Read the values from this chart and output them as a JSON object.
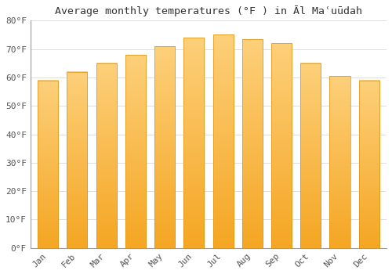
{
  "title": "Average monthly temperatures (°F ) in Àl Maâ€ºdah",
  "title_display": "Average monthly temperatures (°F ) in Āl Maʿuūdah",
  "months": [
    "Jan",
    "Feb",
    "Mar",
    "Apr",
    "May",
    "Jun",
    "Jul",
    "Aug",
    "Sep",
    "Oct",
    "Nov",
    "Dec"
  ],
  "values": [
    59,
    62,
    65,
    68,
    71,
    74,
    75,
    73.5,
    72,
    65,
    60.5,
    59
  ],
  "bar_color": "#F5A623",
  "bar_bottom_color": "#F5A623",
  "bar_top_color": "#FDD07A",
  "background_color": "#FFFFFF",
  "grid_color": "#DDDDDD",
  "ylim": [
    0,
    80
  ],
  "yticks": [
    0,
    10,
    20,
    30,
    40,
    50,
    60,
    70,
    80
  ],
  "ytick_labels": [
    "0°F",
    "10°F",
    "20°F",
    "30°F",
    "40°F",
    "50°F",
    "60°F",
    "70°F",
    "80°F"
  ],
  "title_fontsize": 9.5,
  "tick_fontsize": 8
}
